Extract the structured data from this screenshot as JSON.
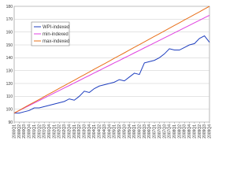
{
  "chart_data": {
    "type": "line",
    "categories": [
      "2000Q1",
      "2000Q2",
      "2000Q3",
      "2000Q4",
      "2001Q1",
      "2001Q2",
      "2001Q3",
      "2001Q4",
      "2002Q1",
      "2002Q2",
      "2002Q3",
      "2002Q4",
      "2003Q1",
      "2003Q2",
      "2003Q3",
      "2003Q4",
      "2004Q1",
      "2004Q2",
      "2004Q3",
      "2004Q4",
      "2005Q1",
      "2005Q2",
      "2005Q3",
      "2005Q4",
      "2006Q1",
      "2006Q2",
      "2006Q3",
      "2006Q4",
      "2007Q1",
      "2007Q2",
      "2007Q3",
      "2007Q4",
      "2008Q1",
      "2008Q2",
      "2008Q3",
      "2008Q4",
      "2009Q1",
      "2009Q2",
      "2009Q3",
      "2009Q4"
    ],
    "series": [
      {
        "name": "WPI-indexed",
        "color": "#1f3fbf",
        "values": [
          97,
          97,
          98,
          99,
          101,
          101,
          102,
          103,
          104,
          105,
          106,
          108,
          107,
          110,
          114,
          113,
          116,
          118,
          119,
          120,
          121,
          123,
          122,
          125,
          128,
          127,
          136,
          137,
          138,
          140,
          143,
          147,
          146,
          146,
          148,
          150,
          151,
          155,
          157,
          152
        ]
      },
      {
        "name": "min-indexed",
        "color": "#e040e0",
        "values": [
          97,
          98.9,
          100.9,
          102.8,
          104.8,
          106.7,
          108.7,
          110.6,
          112.6,
          114.5,
          116.5,
          118.4,
          120.4,
          122.3,
          124.3,
          126.2,
          128.2,
          130.1,
          132.1,
          134.0,
          136.0,
          137.9,
          139.9,
          141.8,
          143.8,
          145.7,
          147.7,
          149.6,
          151.6,
          153.5,
          155.5,
          157.4,
          159.4,
          161.3,
          163.3,
          165.2,
          167.2,
          169.1,
          171.1,
          173
        ]
      },
      {
        "name": "max-indexed",
        "color": "#e8701a",
        "values": [
          97,
          99.1,
          101.3,
          103.4,
          105.5,
          107.6,
          109.8,
          111.9,
          114.0,
          116.2,
          118.3,
          120.4,
          122.5,
          124.7,
          126.8,
          128.9,
          131.1,
          133.2,
          135.3,
          137.4,
          139.6,
          141.7,
          143.8,
          146.0,
          148.1,
          150.2,
          152.3,
          154.5,
          156.6,
          158.7,
          160.8,
          163.0,
          165.1,
          167.2,
          169.4,
          171.5,
          173.6,
          175.7,
          177.9,
          180
        ]
      }
    ],
    "ylim": [
      90,
      180
    ],
    "yticks": [
      90,
      100,
      110,
      120,
      130,
      140,
      150,
      160,
      170,
      180
    ],
    "grid": true,
    "legend": "top-left"
  }
}
